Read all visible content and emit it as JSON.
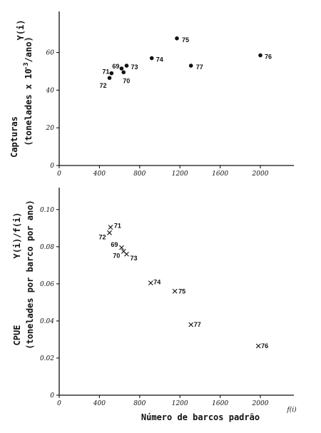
{
  "chart_data": [
    {
      "type": "scatter",
      "title": "",
      "ylabel_line1": "Y(i)",
      "ylabel_line2": "Capturas",
      "ylabel_line3": "(tonelades x 10^-3/ano)",
      "xlabel": "",
      "xlim": [
        0,
        2400
      ],
      "ylim": [
        0,
        75
      ],
      "x_ticks": [
        0,
        400,
        800,
        1200,
        1600,
        2000
      ],
      "y_ticks": [
        0,
        20,
        40,
        60
      ],
      "marker": "dot",
      "points": [
        {
          "label": "69",
          "x": 620,
          "y": 51.5
        },
        {
          "label": "70",
          "x": 640,
          "y": 49.5
        },
        {
          "label": "71",
          "x": 520,
          "y": 49.0
        },
        {
          "label": "72",
          "x": 500,
          "y": 46.5
        },
        {
          "label": "73",
          "x": 670,
          "y": 53.0
        },
        {
          "label": "74",
          "x": 920,
          "y": 57.0
        },
        {
          "label": "75",
          "x": 1170,
          "y": 67.5
        },
        {
          "label": "76",
          "x": 2000,
          "y": 58.5
        },
        {
          "label": "77",
          "x": 1310,
          "y": 53.0
        }
      ]
    },
    {
      "type": "scatter",
      "title": "",
      "ylabel_line1": "Y(i)/f(i)",
      "ylabel_line2": "CPUE",
      "ylabel_line3": "(tonelades por barco por ano)",
      "xlabel": "Número de barcos padrão",
      "xlabel_unit": "f(i)",
      "xlim": [
        0,
        2400
      ],
      "ylim": [
        0,
        0.105
      ],
      "x_ticks": [
        0,
        400,
        800,
        1200,
        1600,
        2000
      ],
      "y_ticks": [
        0,
        0.02,
        0.04,
        0.06,
        0.08,
        0.1
      ],
      "y_tick_labels": [
        "0",
        "0.02",
        "0.04",
        "0.06",
        "0.08",
        "0.10"
      ],
      "marker": "x",
      "points": [
        {
          "label": "69",
          "x": 620,
          "y": 0.0795
        },
        {
          "label": "70",
          "x": 640,
          "y": 0.0775
        },
        {
          "label": "71",
          "x": 510,
          "y": 0.0905
        },
        {
          "label": "72",
          "x": 500,
          "y": 0.0875
        },
        {
          "label": "73",
          "x": 670,
          "y": 0.076
        },
        {
          "label": "74",
          "x": 910,
          "y": 0.0605
        },
        {
          "label": "75",
          "x": 1150,
          "y": 0.056
        },
        {
          "label": "76",
          "x": 1980,
          "y": 0.0265
        },
        {
          "label": "77",
          "x": 1310,
          "y": 0.038
        }
      ]
    }
  ]
}
